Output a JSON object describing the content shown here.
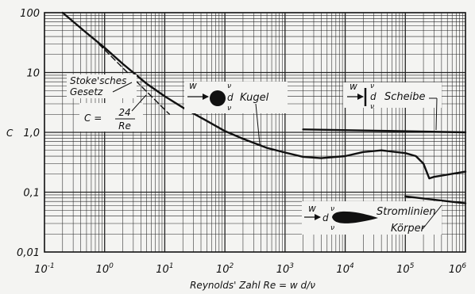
{
  "chart_data": {
    "type": "line",
    "title": "",
    "xlabel": "Reynolds' Zahl Re = w d/ν",
    "ylabel": "C",
    "xscale": "log",
    "yscale": "log",
    "xlim": [
      0.1,
      1000000
    ],
    "ylim": [
      0.01,
      100
    ],
    "grid": true,
    "x_tick_labels": [
      "10^-1",
      "10^0",
      "10^1",
      "10^2",
      "10^3",
      "10^4",
      "10^5",
      "10^6"
    ],
    "y_tick_labels": [
      "0,01",
      "0,1",
      "1,0",
      "10",
      "100"
    ],
    "series": [
      {
        "name": "Kugel",
        "style": "solid",
        "x": [
          0.2,
          0.5,
          1,
          2,
          5,
          10,
          20,
          50,
          100,
          200,
          500,
          1000,
          2000,
          4000,
          10000,
          20000,
          40000,
          100000,
          150000,
          200000,
          250000,
          300000,
          1000000
        ],
        "y": [
          100,
          46,
          26,
          14,
          6.5,
          4.0,
          2.6,
          1.55,
          1.05,
          0.78,
          0.55,
          0.46,
          0.39,
          0.37,
          0.4,
          0.47,
          0.5,
          0.45,
          0.4,
          0.3,
          0.17,
          0.18,
          0.22
        ]
      },
      {
        "name": "Stoke'sches Gesetz",
        "style": "dashed",
        "x": [
          0.8,
          12
        ],
        "y": [
          30,
          2.0
        ]
      },
      {
        "name": "Scheibe",
        "style": "solid",
        "x": [
          2000,
          1000000
        ],
        "y": [
          1.12,
          1.0
        ]
      },
      {
        "name": "Stromlinien Körper",
        "style": "solid",
        "x": [
          100000,
          1000000
        ],
        "y": [
          0.085,
          0.065
        ]
      }
    ],
    "annotations": {
      "stokes_line1": "Stoke'sches",
      "stokes_line2": "Gesetz",
      "formula_c": "C =",
      "formula_num": "24",
      "formula_den": "Re",
      "w": "w",
      "nu": "ν",
      "d": "d",
      "kugel": "Kugel",
      "scheibe": "Scheibe",
      "stromlinien": "Stromlinien",
      "koerper": "Körper"
    }
  }
}
